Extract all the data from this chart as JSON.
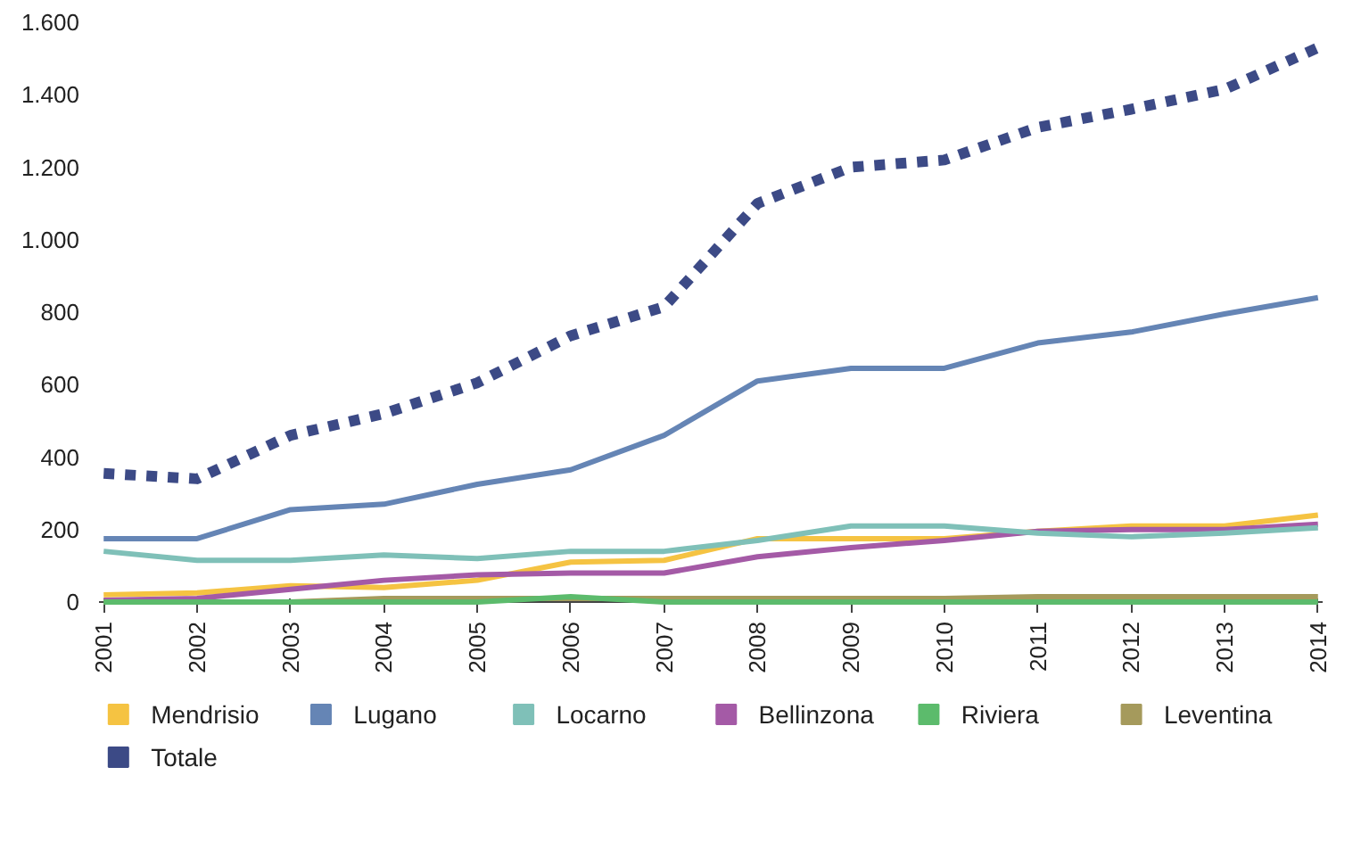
{
  "chart_data": {
    "type": "line",
    "categories": [
      "2001",
      "2002",
      "2003",
      "2004",
      "2005",
      "2006",
      "2007",
      "2008",
      "2009",
      "2010",
      "2011",
      "2012",
      "2013",
      "2014"
    ],
    "series": [
      {
        "name": "Mendrisio",
        "color": "#f5c342",
        "values": [
          20,
          25,
          45,
          40,
          60,
          110,
          115,
          175,
          175,
          175,
          195,
          210,
          210,
          240
        ]
      },
      {
        "name": "Lugano",
        "color": "#6585b5",
        "values": [
          175,
          175,
          255,
          270,
          325,
          365,
          460,
          610,
          645,
          645,
          715,
          745,
          795,
          840
        ]
      },
      {
        "name": "Locarno",
        "color": "#7fc0b8",
        "values": [
          140,
          115,
          115,
          130,
          120,
          140,
          140,
          170,
          210,
          210,
          190,
          180,
          190,
          205
        ]
      },
      {
        "name": "Bellinzona",
        "color": "#a45aa6",
        "values": [
          5,
          10,
          35,
          60,
          75,
          80,
          80,
          125,
          150,
          170,
          195,
          200,
          200,
          215
        ]
      },
      {
        "name": "Riviera",
        "color": "#5cbb6c",
        "values": [
          0,
          0,
          0,
          0,
          0,
          15,
          0,
          0,
          0,
          0,
          0,
          0,
          0,
          0
        ]
      },
      {
        "name": "Leventina",
        "color": "#a59a5c",
        "values": [
          0,
          0,
          0,
          10,
          10,
          10,
          10,
          10,
          10,
          10,
          15,
          15,
          15,
          15
        ]
      },
      {
        "name": "Totale",
        "color": "#3c4a86",
        "values": [
          355,
          340,
          460,
          520,
          605,
          735,
          815,
          1100,
          1200,
          1220,
          1310,
          1360,
          1415,
          1530
        ],
        "line_style": "dotted"
      }
    ],
    "ylim": [
      0,
      1600
    ],
    "yticks": [
      0,
      200,
      400,
      600,
      800,
      {
        "value": 1000,
        "label": "1.000"
      },
      {
        "value": 1200,
        "label": "1.200"
      },
      {
        "value": 1400,
        "label": "1.400"
      },
      {
        "value": 1600,
        "label": "1.600"
      }
    ],
    "grid": false,
    "legend": "bottom",
    "line_style": "solid",
    "marker": "none"
  }
}
